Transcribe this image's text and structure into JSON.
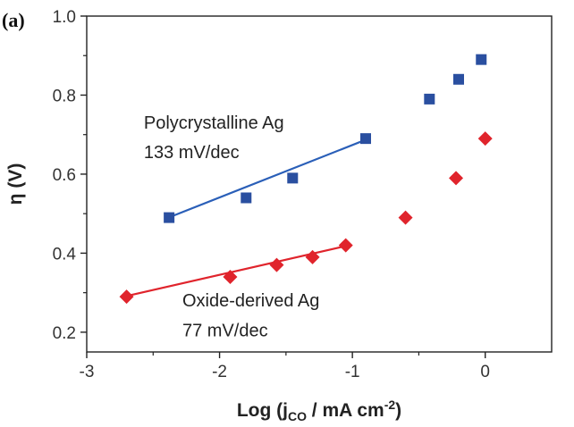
{
  "panel_label": "(a)",
  "chart_data": {
    "type": "scatter",
    "title": "",
    "xlabel": "Log (j",
    "xlabel_subscript": "CO",
    "xlabel_suffix": " / mA cm",
    "xlabel_superscript": "-2",
    "xlabel_close": ")",
    "ylabel": "η (V)",
    "xlim": [
      -3,
      0.5
    ],
    "ylim": [
      0.15,
      1.0
    ],
    "xticks": [
      -3,
      -2,
      -1,
      0
    ],
    "xtick_labels": [
      "-3",
      "-2",
      "-1",
      "0"
    ],
    "yticks": [
      0.2,
      0.4,
      0.6,
      0.8,
      1.0
    ],
    "ytick_labels": [
      "0.2",
      "0.4",
      "0.6",
      "0.8",
      "1.0"
    ],
    "grid": false,
    "series": [
      {
        "marker": "square",
        "color": "#2a4fa0",
        "x": [
          -2.38,
          -1.8,
          -1.45,
          -0.9,
          -0.42,
          -0.2,
          -0.03
        ],
        "y": [
          0.49,
          0.54,
          0.59,
          0.69,
          0.79,
          0.84,
          0.89
        ],
        "fit": {
          "x": [
            -2.4,
            -0.9
          ],
          "y": [
            0.488,
            0.687
          ],
          "color": "#2a5fb8"
        }
      },
      {
        "marker": "diamond",
        "color": "#e0242c",
        "x": [
          -2.7,
          -1.92,
          -1.57,
          -1.3,
          -1.05,
          -0.6,
          -0.22,
          0.0
        ],
        "y": [
          0.29,
          0.34,
          0.37,
          0.39,
          0.42,
          0.49,
          0.59,
          0.69
        ],
        "fit": {
          "x": [
            -2.72,
            -1.05
          ],
          "y": [
            0.29,
            0.418
          ],
          "color": "#e0242c"
        }
      }
    ],
    "annotations": [
      {
        "text": "Polycrystalline Ag",
        "x": -2.57,
        "y": 0.715
      },
      {
        "text": "133 mV/dec",
        "x": -2.57,
        "y": 0.64
      },
      {
        "text": "Oxide-derived Ag",
        "x": -2.28,
        "y": 0.265
      },
      {
        "text": "77 mV/dec",
        "x": -2.28,
        "y": 0.19
      }
    ]
  }
}
